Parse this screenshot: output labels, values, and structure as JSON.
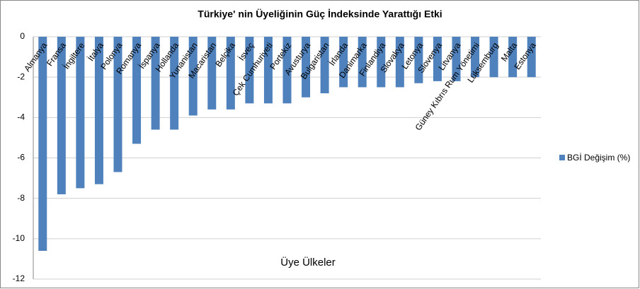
{
  "chart_data": {
    "type": "bar",
    "title": "Türkiye' nin Üyeliğinin Güç İndeksinde Yarattığı Etki",
    "x_label": "Üye Ülkeler",
    "categories": [
      "Almanya",
      "Fransa",
      "İngiltere",
      "İtalya",
      "Polonya",
      "Romanya",
      "İspanya",
      "Hollanda",
      "Yunanistan",
      "Macaristan",
      "Belçika",
      "İsveç",
      "Çek Cumhuriyeti",
      "Portekiz",
      "Avusturya",
      "Bulgaristan",
      "İrlanda",
      "Danimarka",
      "Finlandiya",
      "Slovakya",
      "Letonya",
      "Slovenya",
      "Litvanya",
      "Güney Kıbrıs Rum Yönetimi",
      "Lüksemburg",
      "Malta",
      "Estonya"
    ],
    "series": [
      {
        "name": "BGİ Değişim (%)",
        "color": "#4f81bd",
        "values": [
          -10.6,
          -7.8,
          -7.5,
          -7.3,
          -6.7,
          -5.3,
          -4.6,
          -4.6,
          -3.9,
          -3.6,
          -3.6,
          -3.3,
          -3.3,
          -3.3,
          -3.0,
          -2.8,
          -2.5,
          -2.5,
          -2.5,
          -2.5,
          -2.3,
          -2.2,
          -2.2,
          -2.0,
          -2.0,
          -2.0,
          -2.0
        ]
      }
    ],
    "ylim": [
      -12,
      0
    ],
    "yticks": [
      0,
      -2,
      -4,
      -6,
      -8,
      -10,
      -12
    ],
    "grid": true,
    "legend": "right"
  }
}
